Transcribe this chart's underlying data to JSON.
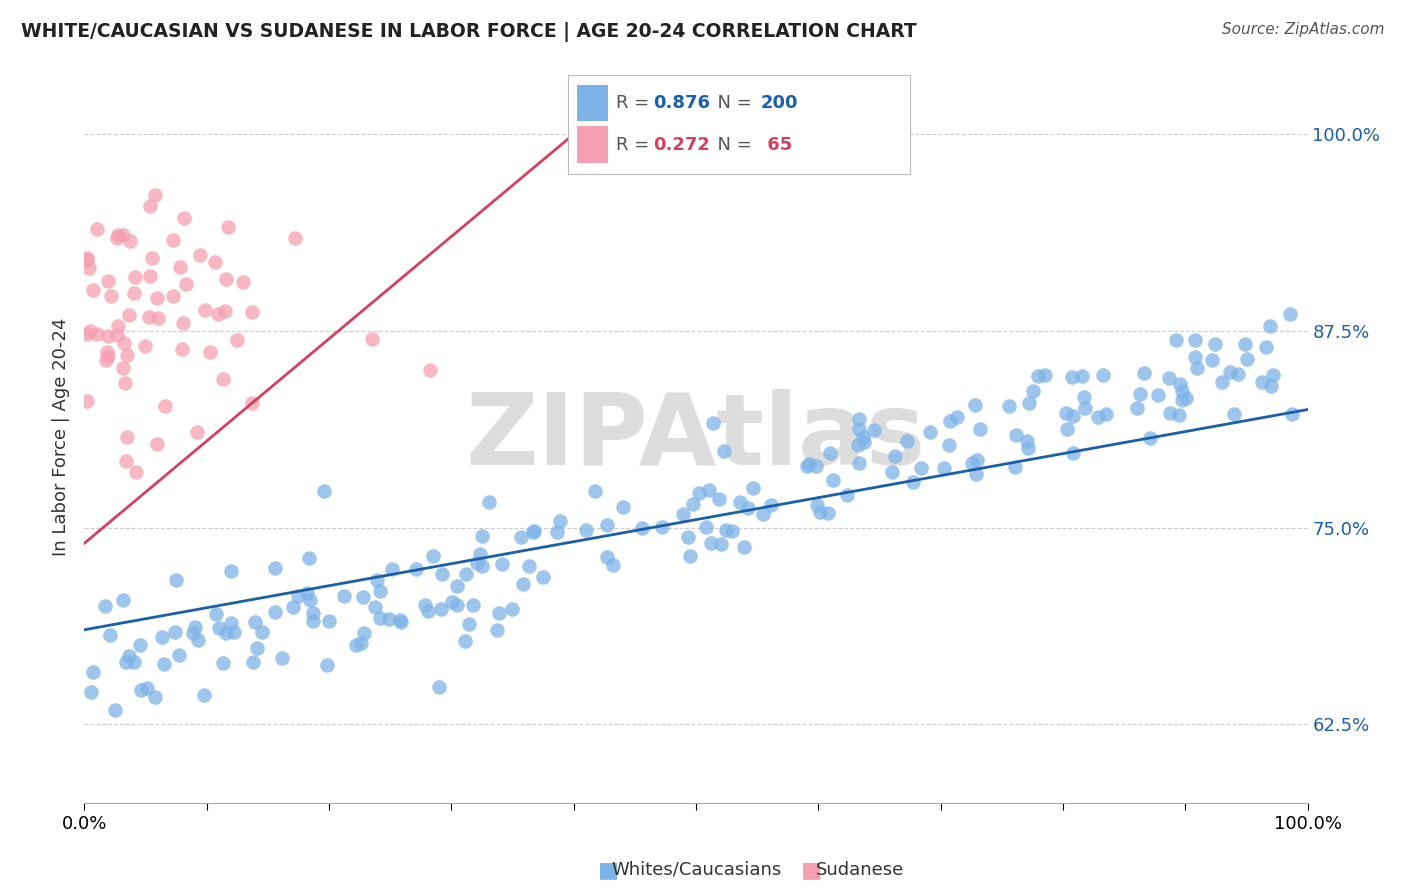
{
  "title": "WHITE/CAUCASIAN VS SUDANESE IN LABOR FORCE | AGE 20-24 CORRELATION CHART",
  "source": "Source: ZipAtlas.com",
  "ylabel": "In Labor Force | Age 20-24",
  "yticks": [
    0.625,
    0.75,
    0.875,
    1.0
  ],
  "ytick_labels": [
    "62.5%",
    "75.0%",
    "87.5%",
    "100.0%"
  ],
  "xlim": [
    0.0,
    1.0
  ],
  "ylim": [
    0.575,
    1.04
  ],
  "blue_R": 0.876,
  "blue_N": 200,
  "pink_R": 0.272,
  "pink_N": 65,
  "blue_color": "#7eb3e8",
  "pink_color": "#f5a0b0",
  "blue_line_color": "#1a5fa8",
  "pink_line_color": "#d44060",
  "legend_label_blue": "Whites/Caucasians",
  "legend_label_pink": "Sudanese",
  "watermark": "ZIPAtlas",
  "blue_seed": 42,
  "pink_seed": 7,
  "blue_trend_x0": 0.0,
  "blue_trend_x1": 1.0,
  "blue_trend_y0": 0.685,
  "blue_trend_y1": 0.825,
  "pink_trend_x0": 0.0,
  "pink_trend_x1": 0.4,
  "pink_trend_y0": 0.74,
  "pink_trend_y1": 1.0
}
